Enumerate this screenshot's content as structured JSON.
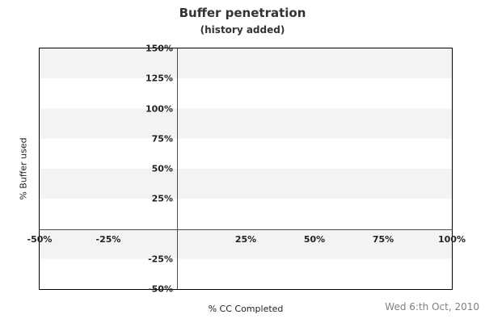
{
  "header": {
    "title": "Buffer penetration",
    "subtitle": "(history added)"
  },
  "footer": {
    "date_label": "Wed 6:th Oct, 2010"
  },
  "colors": {
    "title_text": "#333333",
    "tick_text": "#222222",
    "date_text": "#808080",
    "band_gray": "#f3f3f3",
    "band_white": "#ffffff",
    "zero_axis_line": "#4d4d4d",
    "plot_border": "#000000"
  },
  "chart_data": {
    "type": "line",
    "title": "Buffer penetration",
    "subtitle": "(history added)",
    "xlabel": "% CC Completed",
    "ylabel": "% Buffer used",
    "xlim": [
      -50,
      100
    ],
    "ylim": [
      -50,
      150
    ],
    "x_ticks": [
      {
        "value": -50,
        "label": "-50%"
      },
      {
        "value": -25,
        "label": "-25%"
      },
      {
        "value": 25,
        "label": "25%"
      },
      {
        "value": 50,
        "label": "50%"
      },
      {
        "value": 75,
        "label": "75%"
      },
      {
        "value": 100,
        "label": "100%"
      }
    ],
    "y_ticks": [
      {
        "value": 150,
        "label": "150%"
      },
      {
        "value": 125,
        "label": "125%"
      },
      {
        "value": 100,
        "label": "100%"
      },
      {
        "value": 75,
        "label": "75%"
      },
      {
        "value": 50,
        "label": "50%"
      },
      {
        "value": 25,
        "label": "25%"
      },
      {
        "value": -25,
        "label": "-25%"
      },
      {
        "value": -50,
        "label": "-50%"
      }
    ],
    "series": [],
    "grid": {
      "style": "alternating-horizontal-bands",
      "band_step": 25,
      "legend": "none",
      "zero_axis_lines": true
    }
  }
}
